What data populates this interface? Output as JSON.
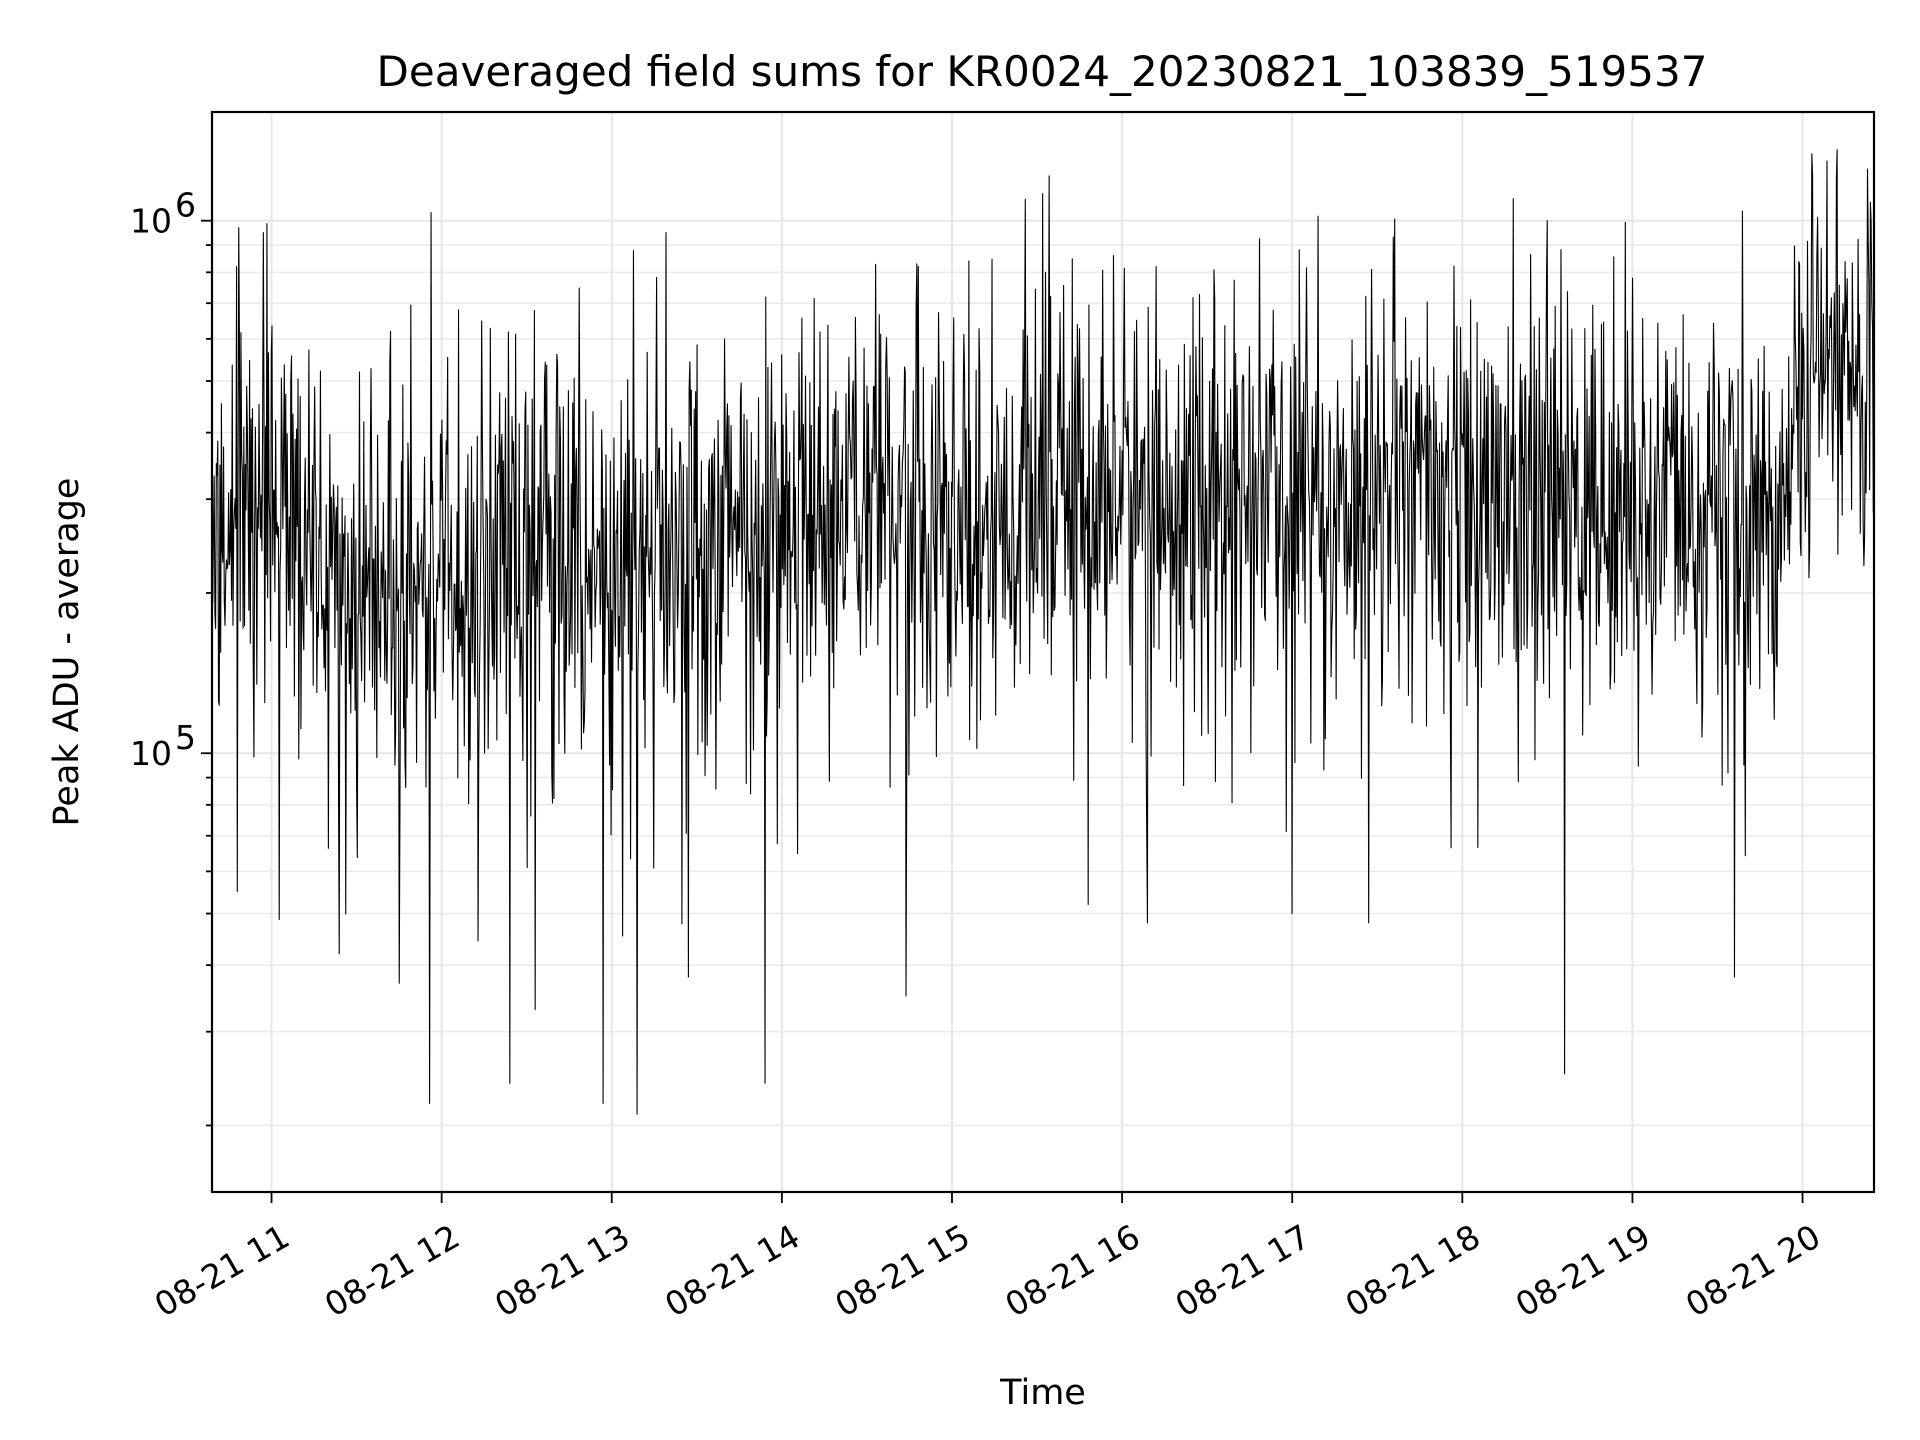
{
  "chart_data": {
    "type": "line",
    "title": "Deaveraged field sums for KR0024_20230821_103839_519537",
    "xlabel": "Time",
    "ylabel": "Peak ADU - average",
    "yscale": "log",
    "ylim": [
      15000,
      1600000
    ],
    "xlim_hours": [
      10.65,
      20.42
    ],
    "grid": true,
    "line_color": "#000000",
    "x_ticks": [
      {
        "hour": 11,
        "label": "08-21 11"
      },
      {
        "hour": 12,
        "label": "08-21 12"
      },
      {
        "hour": 13,
        "label": "08-21 13"
      },
      {
        "hour": 14,
        "label": "08-21 14"
      },
      {
        "hour": 15,
        "label": "08-21 15"
      },
      {
        "hour": 16,
        "label": "08-21 16"
      },
      {
        "hour": 17,
        "label": "08-21 17"
      },
      {
        "hour": 18,
        "label": "08-21 18"
      },
      {
        "hour": 19,
        "label": "08-21 19"
      },
      {
        "hour": 20,
        "label": "08-21 20"
      }
    ],
    "y_major_ticks": [
      {
        "value": 100000,
        "base": "10",
        "exp": "5"
      },
      {
        "value": 1000000,
        "base": "10",
        "exp": "6"
      }
    ],
    "y_minor_ticks": [
      20000,
      30000,
      40000,
      50000,
      60000,
      70000,
      80000,
      90000,
      200000,
      300000,
      400000,
      500000,
      600000,
      700000,
      800000,
      900000
    ],
    "series": [
      {
        "name": "Deaveraged field sum",
        "baseline": [
          [
            10.65,
            240000
          ],
          [
            11.0,
            300000
          ],
          [
            11.3,
            230000
          ],
          [
            11.6,
            225000
          ],
          [
            12.0,
            215000
          ],
          [
            12.5,
            225000
          ],
          [
            13.0,
            245000
          ],
          [
            13.5,
            255000
          ],
          [
            14.0,
            265000
          ],
          [
            14.5,
            275000
          ],
          [
            15.0,
            285000
          ],
          [
            15.5,
            300000
          ],
          [
            16.0,
            305000
          ],
          [
            16.5,
            300000
          ],
          [
            17.0,
            310000
          ],
          [
            17.5,
            305000
          ],
          [
            18.0,
            300000
          ],
          [
            18.5,
            300000
          ],
          [
            19.0,
            290000
          ],
          [
            19.5,
            285000
          ],
          [
            19.9,
            300000
          ],
          [
            20.0,
            560000
          ],
          [
            20.42,
            500000
          ]
        ],
        "peaks": [
          [
            10.95,
            950000
          ],
          [
            11.7,
            620000
          ],
          [
            12.1,
            680000
          ],
          [
            13.32,
            950000
          ],
          [
            14.0,
            560000
          ],
          [
            14.8,
            820000
          ],
          [
            15.1,
            840000
          ],
          [
            15.55,
            800000
          ],
          [
            15.95,
            860000
          ],
          [
            16.2,
            820000
          ],
          [
            17.15,
            1020000
          ],
          [
            18.3,
            1100000
          ],
          [
            18.5,
            1000000
          ],
          [
            19.0,
            780000
          ],
          [
            20.2,
            1200000
          ],
          [
            20.38,
            1250000
          ]
        ],
        "dips": [
          [
            10.8,
            55000
          ],
          [
            11.4,
            42000
          ],
          [
            11.75,
            37000
          ],
          [
            11.93,
            22000
          ],
          [
            12.4,
            24000
          ],
          [
            12.55,
            33000
          ],
          [
            12.95,
            22000
          ],
          [
            13.15,
            21000
          ],
          [
            13.45,
            38000
          ],
          [
            13.9,
            24000
          ],
          [
            14.73,
            35000
          ],
          [
            15.8,
            52000
          ],
          [
            16.15,
            48000
          ],
          [
            17.0,
            50000
          ],
          [
            17.45,
            48000
          ],
          [
            18.6,
            25000
          ],
          [
            19.6,
            38000
          ]
        ]
      }
    ]
  }
}
